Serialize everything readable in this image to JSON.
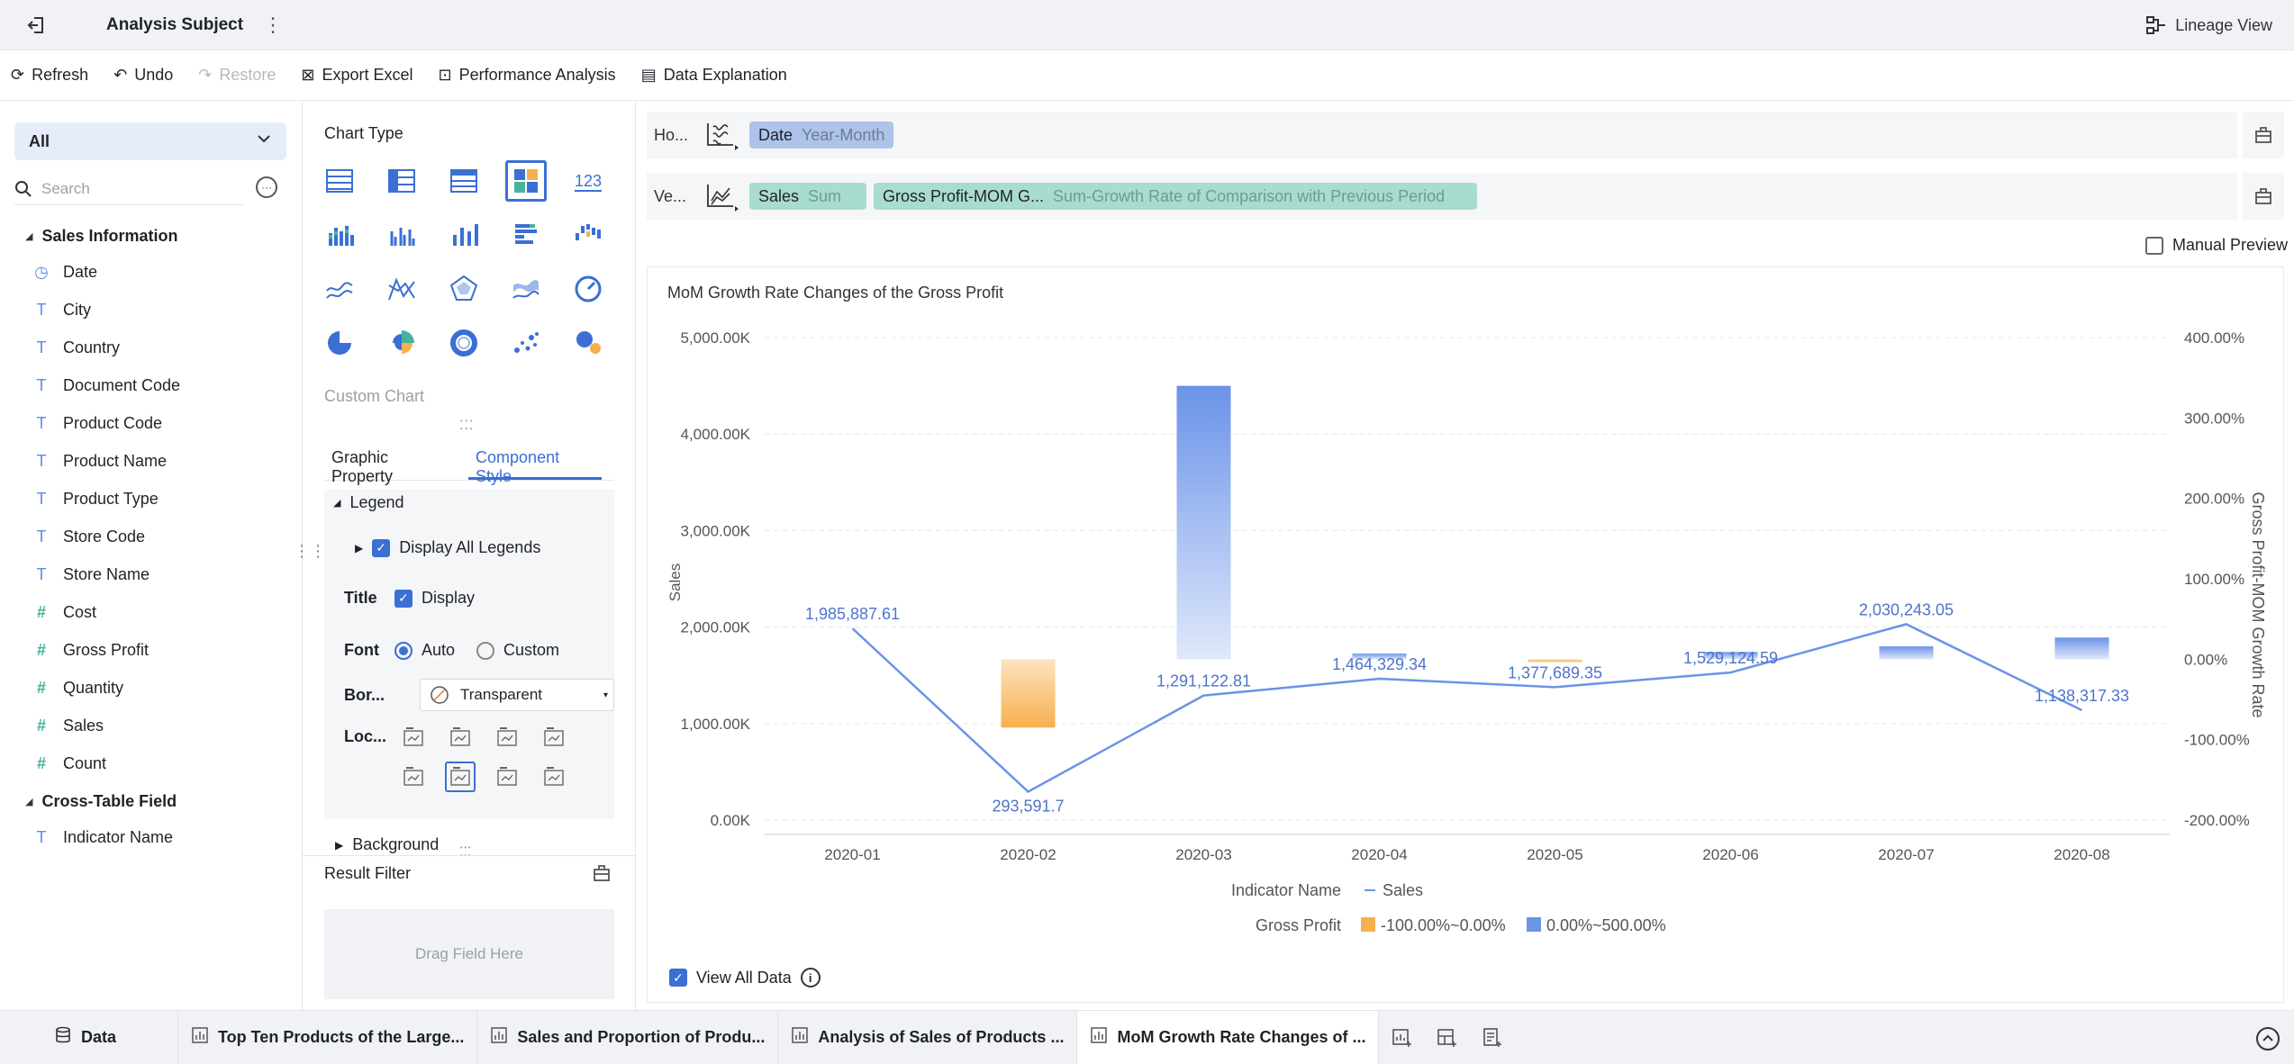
{
  "header": {
    "title": "Analysis Subject",
    "lineage_label": "Lineage View"
  },
  "toolbar": {
    "refresh": "Refresh",
    "undo": "Undo",
    "restore": "Restore",
    "export": "Export Excel",
    "performance": "Performance Analysis",
    "explanation": "Data Explanation"
  },
  "left": {
    "selector": "All",
    "search_placeholder": "Search",
    "groups": [
      {
        "name": "Sales Information",
        "fields": [
          {
            "name": "Date",
            "icon": "clock-icon"
          },
          {
            "name": "City",
            "icon": "text-icon"
          },
          {
            "name": "Country",
            "icon": "text-icon"
          },
          {
            "name": "Document Code",
            "icon": "text-icon"
          },
          {
            "name": "Product Code",
            "icon": "text-icon"
          },
          {
            "name": "Product Name",
            "icon": "text-icon"
          },
          {
            "name": "Product Type",
            "icon": "text-icon"
          },
          {
            "name": "Store Code",
            "icon": "text-icon"
          },
          {
            "name": "Store Name",
            "icon": "text-icon"
          },
          {
            "name": "Cost",
            "icon": "number-icon"
          },
          {
            "name": "Gross Profit",
            "icon": "number-icon"
          },
          {
            "name": "Quantity",
            "icon": "number-icon"
          },
          {
            "name": "Sales",
            "icon": "number-icon"
          },
          {
            "name": "Count",
            "icon": "number-icon"
          }
        ]
      },
      {
        "name": "Cross-Table Field",
        "fields": [
          {
            "name": "Indicator Name",
            "icon": "text-icon"
          }
        ]
      }
    ]
  },
  "middle": {
    "chart_type_label": "Chart Type",
    "custom_chart_label": "Custom Chart",
    "tabs": [
      "Graphic Property",
      "Component Style"
    ],
    "active_tab": 1,
    "legend_label": "Legend",
    "display_all_legends": "Display All Legends",
    "title_label": "Title",
    "display_label": "Display",
    "font_label": "Font",
    "font_auto": "Auto",
    "font_custom": "Custom",
    "border_label": "Bor...",
    "border_value": "Transparent",
    "location_label": "Loc...",
    "background_label": "Background",
    "result_filter": "Result Filter",
    "drag_field": "Drag Field Here"
  },
  "shelves": {
    "horizontal": {
      "name": "Ho...",
      "pills": [
        {
          "label": "Date",
          "sub": "Year-Month"
        }
      ]
    },
    "vertical": {
      "name": "Ve...",
      "pills": [
        {
          "label": "Sales",
          "sub": "Sum"
        },
        {
          "label": "Gross Profit-MOM G...",
          "sub": "Sum-Growth Rate of Comparison with Previous Period"
        }
      ]
    }
  },
  "manual_preview": "Manual Preview",
  "view_all_data": "View All Data",
  "chart_data": {
    "type": "bar",
    "title": "MoM Growth Rate Changes of the Gross Profit",
    "categories": [
      "2020-01",
      "2020-02",
      "2020-03",
      "2020-04",
      "2020-05",
      "2020-06",
      "2020-07",
      "2020-08"
    ],
    "ylabel": "Sales",
    "y2label": "Gross Profit-MOM Growth Rate",
    "ylim": [
      0,
      5000000
    ],
    "y2lim": [
      -200,
      400
    ],
    "yticks": [
      "0.00K",
      "1,000.00K",
      "2,000.00K",
      "3,000.00K",
      "4,000.00K",
      "5,000.00K"
    ],
    "y2ticks": [
      "-200.00%",
      "-100.00%",
      "0.00%",
      "100.00%",
      "200.00%",
      "300.00%",
      "400.00%"
    ],
    "series": [
      {
        "name": "Sales",
        "type": "line",
        "axis": "left",
        "color": "#6b93e8",
        "values": [
          1985887.61,
          293591.7,
          1291122.81,
          1464329.34,
          1377689.35,
          1529124.59,
          2030243.05,
          1138317.33
        ],
        "labels": [
          "1,985,887.61",
          "293,591.7",
          "1,291,122.81",
          "1,464,329.34",
          "1,377,689.35",
          "1,529,124.59",
          "2,030,243.05",
          "1,138,317.33"
        ]
      },
      {
        "name": "Gross Profit",
        "type": "bar",
        "axis": "right",
        "values": [
          0,
          -85,
          340,
          7,
          -3,
          9,
          16,
          27
        ]
      }
    ],
    "legend": {
      "position": "bottom",
      "indicator_label": "Indicator Name",
      "indicator_item": "Sales",
      "gp_label": "Gross Profit",
      "ranges": [
        {
          "label": "-100.00%~0.00%",
          "color": "#f7b04e"
        },
        {
          "label": "0.00%~500.00%",
          "color": "#6b93e8"
        }
      ]
    }
  },
  "bottom_tabs": [
    {
      "label": "Data",
      "icon": "database-icon"
    },
    {
      "label": "Top Ten Products of the Large...",
      "icon": "chart-icon"
    },
    {
      "label": "Sales and Proportion of Produ...",
      "icon": "chart-icon"
    },
    {
      "label": "Analysis of Sales of Products ...",
      "icon": "chart-icon"
    },
    {
      "label": "MoM Growth Rate Changes of ...",
      "icon": "chart-icon",
      "active": true
    }
  ]
}
